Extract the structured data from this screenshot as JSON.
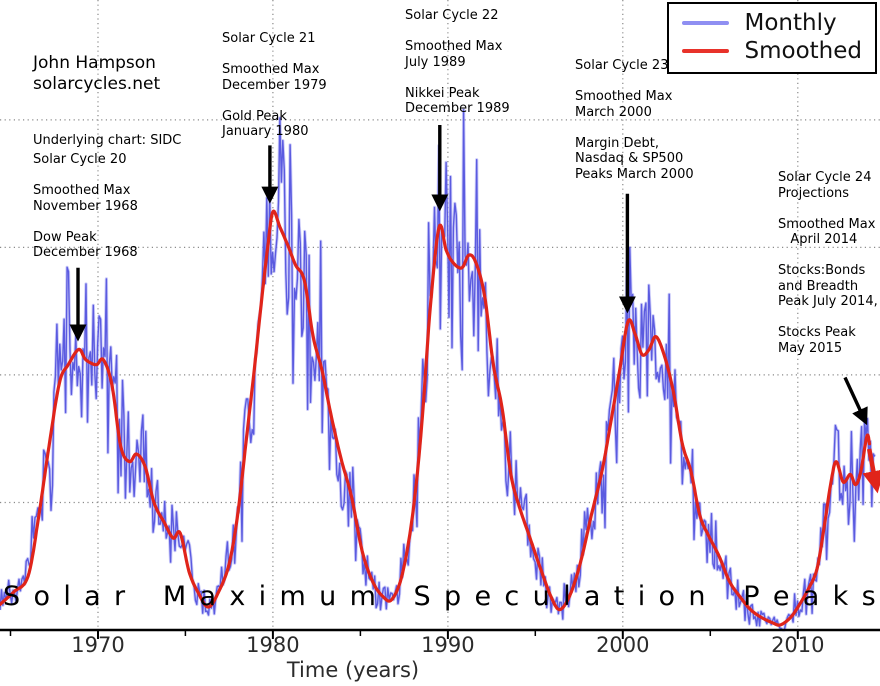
{
  "header": {
    "author_line1": "John Hampson",
    "author_line2": "solarcycles.net",
    "source": "Underlying chart: SIDC"
  },
  "legend": {
    "entries": [
      {
        "label": "Monthly",
        "color": "#8f8ff2"
      },
      {
        "label": "Smoothed",
        "color": "#e8322a"
      }
    ]
  },
  "annotations": {
    "sc20": {
      "lines": [
        "Solar Cycle 20",
        "",
        "Smoothed Max",
        "November 1968",
        "",
        "Dow Peak",
        "December 1968"
      ]
    },
    "sc21": {
      "lines": [
        "Solar Cycle 21",
        "",
        "Smoothed Max",
        "December 1979",
        "",
        "Gold Peak",
        "January 1980"
      ]
    },
    "sc22": {
      "lines": [
        "Solar Cycle 22",
        "",
        "Smoothed Max",
        "July 1989",
        "",
        "Nikkei Peak",
        "December 1989"
      ]
    },
    "sc23": {
      "lines": [
        "Solar Cycle 23",
        "",
        "Smoothed Max",
        "March 2000",
        "",
        "Margin Debt,",
        "Nasdaq & SP500",
        "Peaks March 2000"
      ]
    },
    "sc24": {
      "lines": [
        "Solar Cycle 24",
        "Projections",
        "",
        "Smoothed Max",
        "   April 2014",
        "",
        "Stocks:Bonds",
        "and Breadth",
        "Peak July 2014,",
        "",
        "Stocks Peak",
        "May 2015"
      ]
    }
  },
  "footer_banner": {
    "text": "Solar Maximum Speculation Peaks"
  },
  "chart_data": {
    "type": "line",
    "title": "",
    "xlabel": "Time (years)",
    "ylabel": "",
    "x_axis": {
      "min": 1964.4,
      "max": 2014.7,
      "major_ticks": [
        1970,
        1980,
        1990,
        2000,
        2010
      ],
      "minor_ticks": [
        1965,
        1975,
        1985,
        1995,
        2005
      ],
      "gridlines_at_major": true
    },
    "y_axis": {
      "min": 0,
      "max": 247,
      "gridlines": [
        50,
        100,
        150,
        200
      ],
      "tick_labels_visible": false
    },
    "grid_style": "dotted",
    "legend_position": "top-right",
    "series": [
      {
        "name": "Monthly",
        "color": "#4f4fdd",
        "halo_color": "#9a9af4",
        "style": "jagged-monthly",
        "derived_from": "Smoothed",
        "noise": {
          "seed": 9,
          "base": 4,
          "factor": 0.3,
          "samples_per_year": 12,
          "x_end": 2014.4
        }
      },
      {
        "name": "Smoothed",
        "color": "#e0241a",
        "style": "smooth",
        "points": [
          [
            1964.4,
            10
          ],
          [
            1965.2,
            15
          ],
          [
            1966.0,
            21
          ],
          [
            1966.6,
            44
          ],
          [
            1967.2,
            72
          ],
          [
            1967.8,
            97
          ],
          [
            1968.3,
            104
          ],
          [
            1968.9,
            110
          ],
          [
            1969.3,
            106
          ],
          [
            1969.9,
            104
          ],
          [
            1970.3,
            106
          ],
          [
            1970.8,
            96
          ],
          [
            1971.3,
            72
          ],
          [
            1971.8,
            66
          ],
          [
            1972.2,
            69
          ],
          [
            1972.7,
            64
          ],
          [
            1973.2,
            50
          ],
          [
            1973.8,
            42
          ],
          [
            1974.3,
            36
          ],
          [
            1974.7,
            38
          ],
          [
            1975.2,
            23
          ],
          [
            1975.7,
            15
          ],
          [
            1976.3,
            9
          ],
          [
            1976.9,
            15
          ],
          [
            1977.5,
            26
          ],
          [
            1978.0,
            46
          ],
          [
            1978.5,
            76
          ],
          [
            1978.9,
            100
          ],
          [
            1979.3,
            126
          ],
          [
            1979.7,
            150
          ],
          [
            1980.0,
            164
          ],
          [
            1980.4,
            158
          ],
          [
            1980.9,
            150
          ],
          [
            1981.3,
            143
          ],
          [
            1981.8,
            137
          ],
          [
            1982.3,
            115
          ],
          [
            1982.8,
            102
          ],
          [
            1983.3,
            85
          ],
          [
            1983.9,
            67
          ],
          [
            1984.5,
            52
          ],
          [
            1985.1,
            31
          ],
          [
            1985.7,
            19
          ],
          [
            1986.3,
            13
          ],
          [
            1986.8,
            12
          ],
          [
            1987.4,
            22
          ],
          [
            1988.0,
            46
          ],
          [
            1988.5,
            80
          ],
          [
            1989.0,
            127
          ],
          [
            1989.5,
            158
          ],
          [
            1989.9,
            149
          ],
          [
            1990.3,
            144
          ],
          [
            1990.8,
            142
          ],
          [
            1991.2,
            147
          ],
          [
            1991.6,
            144
          ],
          [
            1992.1,
            131
          ],
          [
            1992.6,
            104
          ],
          [
            1993.1,
            87
          ],
          [
            1993.6,
            61
          ],
          [
            1994.1,
            48
          ],
          [
            1994.7,
            36
          ],
          [
            1995.3,
            24
          ],
          [
            1995.9,
            13
          ],
          [
            1996.4,
            8
          ],
          [
            1997.0,
            14
          ],
          [
            1997.6,
            27
          ],
          [
            1998.2,
            45
          ],
          [
            1998.8,
            62
          ],
          [
            1999.3,
            81
          ],
          [
            1999.8,
            101
          ],
          [
            2000.3,
            121
          ],
          [
            2000.7,
            116
          ],
          [
            2001.1,
            108
          ],
          [
            2001.5,
            110
          ],
          [
            2001.9,
            115
          ],
          [
            2002.4,
            107
          ],
          [
            2002.9,
            93
          ],
          [
            2003.4,
            73
          ],
          [
            2003.9,
            62
          ],
          [
            2004.4,
            45
          ],
          [
            2004.9,
            37
          ],
          [
            2005.5,
            29
          ],
          [
            2006.1,
            19
          ],
          [
            2006.7,
            13
          ],
          [
            2007.3,
            8
          ],
          [
            2007.9,
            5
          ],
          [
            2008.5,
            3
          ],
          [
            2009.0,
            2
          ],
          [
            2009.6,
            5
          ],
          [
            2010.1,
            10
          ],
          [
            2010.6,
            16
          ],
          [
            2011.1,
            24
          ],
          [
            2011.5,
            40
          ],
          [
            2011.9,
            58
          ],
          [
            2012.2,
            66
          ],
          [
            2012.6,
            58
          ],
          [
            2013.0,
            61
          ],
          [
            2013.3,
            57
          ],
          [
            2013.6,
            62
          ],
          [
            2013.95,
            76
          ],
          [
            2014.1,
            73
          ]
        ]
      }
    ],
    "arrows": [
      {
        "name": "sc20-arrow",
        "color": "#000000",
        "from": [
          1968.86,
          142
        ],
        "to": [
          1968.86,
          115
        ]
      },
      {
        "name": "sc21-arrow",
        "color": "#000000",
        "from": [
          1979.83,
          190
        ],
        "to": [
          1979.83,
          169
        ]
      },
      {
        "name": "sc22-arrow",
        "color": "#000000",
        "from": [
          1989.54,
          198
        ],
        "to": [
          1989.54,
          166
        ]
      },
      {
        "name": "sc23-arrow",
        "color": "#000000",
        "from": [
          2000.26,
          171
        ],
        "to": [
          2000.26,
          126
        ]
      },
      {
        "name": "sc24-arrow",
        "color": "#000000",
        "from": [
          2012.7,
          99
        ],
        "to": [
          2013.85,
          82
        ]
      },
      {
        "name": "smoothed-projection-arrow",
        "color": "#e0241a",
        "from": [
          2014.08,
          71
        ],
        "to": [
          2014.5,
          56
        ]
      }
    ]
  }
}
